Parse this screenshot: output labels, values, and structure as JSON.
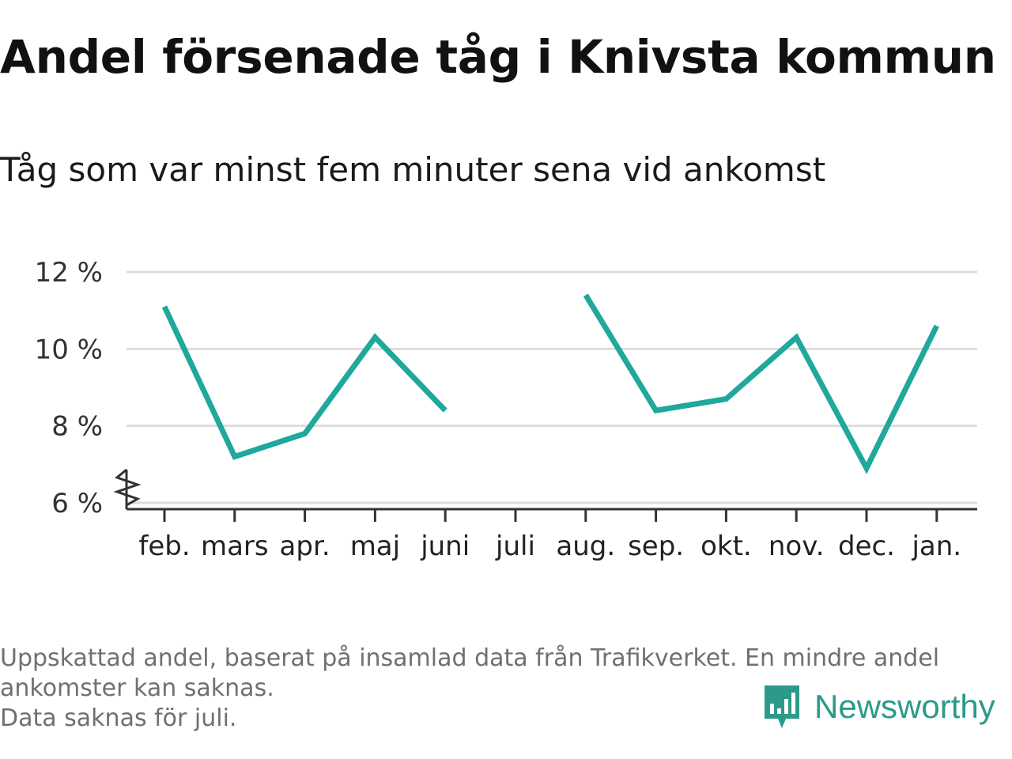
{
  "title": "Andel försenade tåg i Knivsta kommun",
  "subtitle": "Tåg som var minst fem minuter sena vid ankomst",
  "footnote": {
    "line1": "Uppskattad andel, baserat på insamlad data från Trafikverket. En mindre andel",
    "line2": "ankomster kan saknas.",
    "line3": "Data saknas för juli."
  },
  "brand": {
    "name": "Newsworthy",
    "icon": "newsworthy-logo-icon",
    "color": "#2b9a8a"
  },
  "chart_data": {
    "type": "line",
    "categories": [
      "feb.",
      "mars",
      "apr.",
      "maj",
      "juni",
      "juli",
      "aug.",
      "sep.",
      "okt.",
      "nov.",
      "dec.",
      "jan."
    ],
    "series": [
      {
        "values": [
          11.1,
          7.2,
          7.8,
          10.3,
          8.4,
          null,
          11.4,
          8.4,
          8.7,
          10.3,
          6.9,
          10.6
        ]
      }
    ],
    "yticks": [
      6,
      8,
      10,
      12
    ],
    "ytick_labels": [
      "6 %",
      "8 %",
      "10 %",
      "12 %"
    ],
    "ylim": [
      6,
      12
    ],
    "y_axis_break": true,
    "grid": true,
    "line_color": "#1fa89b",
    "grid_color": "#dddddd",
    "xlabel": "",
    "ylabel": ""
  }
}
